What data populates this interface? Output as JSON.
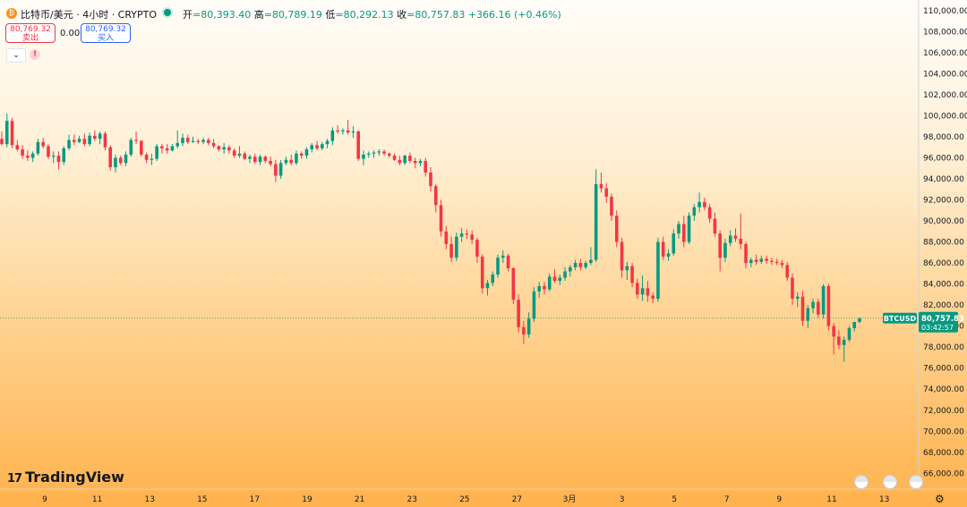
{
  "header": {
    "symbol": "比特币/美元 · 4小时 · CRYPTO",
    "open_label": "开",
    "open": "80,393.40",
    "high_label": "高",
    "high": "80,789.19",
    "low_label": "低",
    "low": "80,292.13",
    "close_label": "收",
    "close": "80,757.83",
    "change": "+366.16 (+0.46%)"
  },
  "trade": {
    "sell_price": "80,769.32",
    "sell_label": "卖出",
    "spread": "0.00",
    "buy_price": "80,769.32",
    "buy_label": "买入"
  },
  "logo_text": "TradingView",
  "icons": [
    "bitcoin-icon",
    "live-status-icon",
    "chevron-down-icon",
    "alert-icon",
    "event-flag-icon",
    "gear-icon"
  ],
  "colors": {
    "up": "#089981",
    "down": "#f23645",
    "sell": "#f23645",
    "buy": "#2962ff"
  },
  "chart_data": {
    "type": "candlestick",
    "symbol": "BTCUSD",
    "interval": "4h",
    "last_price": "80,757.83",
    "countdown": "03:42:57",
    "price_axis_label": "BTCUSD",
    "ylim": [
      64500,
      111000
    ],
    "y_ticks": [
      66000,
      68000,
      70000,
      72000,
      74000,
      76000,
      78000,
      80000,
      82000,
      84000,
      86000,
      88000,
      90000,
      92000,
      94000,
      96000,
      98000,
      100000,
      102000,
      104000,
      106000,
      108000,
      110000
    ],
    "x_ticks": [
      "9",
      "11",
      "13",
      "15",
      "17",
      "19",
      "21",
      "23",
      "25",
      "27",
      "3月",
      "3",
      "5",
      "7",
      "9",
      "11",
      "13"
    ],
    "candles": [
      [
        97800,
        98500,
        97200,
        97300
      ],
      [
        97300,
        100200,
        97000,
        99500
      ],
      [
        99500,
        99800,
        96900,
        97200
      ],
      [
        97200,
        97700,
        96600,
        96800
      ],
      [
        96800,
        97200,
        95900,
        96200
      ],
      [
        96200,
        96700,
        95700,
        96000
      ],
      [
        96000,
        96600,
        95600,
        96400
      ],
      [
        96400,
        97800,
        96200,
        97500
      ],
      [
        97500,
        97900,
        96900,
        97100
      ],
      [
        97100,
        97300,
        95900,
        96100
      ],
      [
        96100,
        96600,
        95500,
        96200
      ],
      [
        96200,
        96600,
        94900,
        95600
      ],
      [
        95600,
        97100,
        95300,
        96900
      ],
      [
        96900,
        98200,
        96700,
        97700
      ],
      [
        97700,
        98200,
        97200,
        97500
      ],
      [
        97500,
        98100,
        97400,
        97800
      ],
      [
        97800,
        98300,
        97100,
        97300
      ],
      [
        97300,
        98400,
        97100,
        98100
      ],
      [
        98100,
        98600,
        97600,
        97800
      ],
      [
        97800,
        98500,
        97300,
        98300
      ],
      [
        98300,
        98500,
        96700,
        97000
      ],
      [
        97000,
        97200,
        94800,
        95100
      ],
      [
        95100,
        96300,
        94600,
        96000
      ],
      [
        96000,
        96200,
        95300,
        95500
      ],
      [
        95500,
        96600,
        95200,
        96300
      ],
      [
        96300,
        97900,
        96100,
        97700
      ],
      [
        97700,
        98500,
        97300,
        97600
      ],
      [
        97600,
        97700,
        96100,
        96300
      ],
      [
        96300,
        96500,
        95500,
        95800
      ],
      [
        95800,
        96400,
        95300,
        95900
      ],
      [
        95900,
        97300,
        95700,
        97100
      ],
      [
        97100,
        97300,
        96400,
        96900
      ],
      [
        96900,
        97300,
        96400,
        96700
      ],
      [
        96700,
        97300,
        96600,
        97100
      ],
      [
        97100,
        98600,
        96900,
        97400
      ],
      [
        97400,
        98300,
        97100,
        97900
      ],
      [
        97900,
        98200,
        97300,
        97500
      ],
      [
        97500,
        98000,
        97400,
        97600
      ],
      [
        97600,
        97800,
        97300,
        97500
      ],
      [
        97500,
        97900,
        97300,
        97700
      ],
      [
        97700,
        97900,
        97200,
        97400
      ],
      [
        97400,
        97800,
        96900,
        97100
      ],
      [
        97100,
        97200,
        96600,
        96800
      ],
      [
        96800,
        97400,
        96400,
        97000
      ],
      [
        97000,
        97200,
        96400,
        96700
      ],
      [
        96700,
        96900,
        96000,
        96200
      ],
      [
        96200,
        97100,
        96000,
        96400
      ],
      [
        96400,
        96600,
        95800,
        95900
      ],
      [
        95900,
        96300,
        95500,
        96100
      ],
      [
        96100,
        96400,
        95400,
        95600
      ],
      [
        95600,
        96300,
        95300,
        96100
      ],
      [
        96100,
        96200,
        95500,
        95700
      ],
      [
        95700,
        96100,
        95200,
        95400
      ],
      [
        95400,
        95800,
        93700,
        94300
      ],
      [
        94300,
        95800,
        94000,
        95500
      ],
      [
        95500,
        96100,
        95300,
        95800
      ],
      [
        95800,
        96300,
        95300,
        95500
      ],
      [
        95500,
        96700,
        95300,
        96400
      ],
      [
        96400,
        96600,
        95900,
        96200
      ],
      [
        96200,
        97000,
        95900,
        96800
      ],
      [
        96800,
        97400,
        96500,
        97200
      ],
      [
        97200,
        97600,
        96700,
        96900
      ],
      [
        96900,
        97500,
        96700,
        97300
      ],
      [
        97300,
        97800,
        96900,
        97600
      ],
      [
        97600,
        98900,
        97200,
        98600
      ],
      [
        98600,
        99100,
        98300,
        98500
      ],
      [
        98500,
        98800,
        98200,
        98600
      ],
      [
        98600,
        99600,
        98200,
        98400
      ],
      [
        98400,
        99000,
        97900,
        98500
      ],
      [
        98500,
        98600,
        95700,
        95900
      ],
      [
        95900,
        96700,
        95300,
        96300
      ],
      [
        96300,
        96600,
        96000,
        96400
      ],
      [
        96400,
        96700,
        96000,
        96500
      ],
      [
        96500,
        96800,
        96200,
        96600
      ],
      [
        96600,
        96800,
        96200,
        96400
      ],
      [
        96400,
        96500,
        96000,
        96200
      ],
      [
        96200,
        96400,
        95700,
        95800
      ],
      [
        95800,
        96200,
        95300,
        95500
      ],
      [
        95500,
        96300,
        95300,
        96200
      ],
      [
        96200,
        96500,
        95500,
        95700
      ],
      [
        95700,
        96000,
        95000,
        95500
      ],
      [
        95500,
        95900,
        95200,
        95700
      ],
      [
        95700,
        96000,
        94200,
        94600
      ],
      [
        94600,
        95100,
        92800,
        93300
      ],
      [
        93300,
        93500,
        90800,
        91500
      ],
      [
        91500,
        92000,
        88500,
        89000
      ],
      [
        89000,
        89500,
        87300,
        87800
      ],
      [
        87800,
        88500,
        86100,
        86500
      ],
      [
        86500,
        88900,
        86200,
        88500
      ],
      [
        88500,
        89300,
        88000,
        88800
      ],
      [
        88800,
        89200,
        88300,
        88700
      ],
      [
        88700,
        89100,
        87800,
        88200
      ],
      [
        88200,
        88400,
        86000,
        86600
      ],
      [
        86600,
        86800,
        83100,
        83600
      ],
      [
        83600,
        84400,
        82900,
        84100
      ],
      [
        84100,
        85200,
        83800,
        84900
      ],
      [
        84900,
        86800,
        84600,
        86500
      ],
      [
        86500,
        87200,
        86000,
        86700
      ],
      [
        86700,
        86900,
        85200,
        85500
      ],
      [
        85500,
        85600,
        82100,
        82500
      ],
      [
        82500,
        83000,
        79400,
        79900
      ],
      [
        79900,
        80500,
        78300,
        79200
      ],
      [
        79200,
        81300,
        78900,
        80700
      ],
      [
        80700,
        83700,
        80400,
        83300
      ],
      [
        83300,
        84200,
        82700,
        83800
      ],
      [
        83800,
        84200,
        83000,
        83500
      ],
      [
        83500,
        85000,
        83300,
        84700
      ],
      [
        84700,
        85400,
        84100,
        84300
      ],
      [
        84300,
        84900,
        83900,
        84600
      ],
      [
        84600,
        85600,
        84300,
        85200
      ],
      [
        85200,
        85800,
        84700,
        85600
      ],
      [
        85600,
        86300,
        85300,
        86000
      ],
      [
        86000,
        86400,
        85300,
        85600
      ],
      [
        85600,
        86200,
        85400,
        86000
      ],
      [
        86000,
        87500,
        85800,
        86300
      ],
      [
        86300,
        94900,
        86100,
        93500
      ],
      [
        93500,
        94600,
        92700,
        93100
      ],
      [
        93100,
        93600,
        91700,
        92300
      ],
      [
        92300,
        92600,
        90000,
        90500
      ],
      [
        90500,
        91000,
        87500,
        88000
      ],
      [
        88000,
        88400,
        84600,
        85300
      ],
      [
        85300,
        86100,
        84400,
        85700
      ],
      [
        85700,
        86000,
        83700,
        84100
      ],
      [
        84100,
        84500,
        82600,
        83000
      ],
      [
        83000,
        84800,
        82400,
        83600
      ],
      [
        83600,
        84300,
        82300,
        82900
      ],
      [
        82900,
        83200,
        82200,
        82600
      ],
      [
        82600,
        88400,
        82300,
        88000
      ],
      [
        88000,
        88500,
        86300,
        86600
      ],
      [
        86600,
        87300,
        86200,
        86900
      ],
      [
        86900,
        89200,
        86700,
        88800
      ],
      [
        88800,
        90000,
        88300,
        89700
      ],
      [
        89700,
        90500,
        87500,
        88000
      ],
      [
        88000,
        90800,
        87800,
        90500
      ],
      [
        90500,
        91600,
        90000,
        91300
      ],
      [
        91300,
        92700,
        90800,
        91800
      ],
      [
        91800,
        92200,
        91000,
        91300
      ],
      [
        91300,
        91600,
        89800,
        90200
      ],
      [
        90200,
        90800,
        88500,
        88800
      ],
      [
        88800,
        89100,
        85200,
        86500
      ],
      [
        86500,
        88300,
        86100,
        87900
      ],
      [
        87900,
        89100,
        87600,
        88600
      ],
      [
        88600,
        89300,
        88000,
        88300
      ],
      [
        88300,
        90700,
        87300,
        87800
      ],
      [
        87800,
        88000,
        85500,
        86000
      ],
      [
        86000,
        86500,
        85600,
        86300
      ],
      [
        86300,
        86800,
        85800,
        86100
      ],
      [
        86100,
        86700,
        85900,
        86400
      ],
      [
        86400,
        86700,
        85900,
        86200
      ],
      [
        86200,
        86500,
        85800,
        86100
      ],
      [
        86100,
        86400,
        85800,
        86000
      ],
      [
        86000,
        86300,
        85500,
        85800
      ],
      [
        85800,
        86100,
        84300,
        84600
      ],
      [
        84600,
        85000,
        82000,
        82600
      ],
      [
        82600,
        83200,
        81800,
        82800
      ],
      [
        82800,
        83400,
        80000,
        80500
      ],
      [
        80500,
        82000,
        79800,
        81700
      ],
      [
        81700,
        82600,
        81200,
        82300
      ],
      [
        82300,
        82600,
        80800,
        81100
      ],
      [
        81100,
        84000,
        80700,
        83800
      ],
      [
        83800,
        84000,
        79600,
        80000
      ],
      [
        80000,
        80300,
        77300,
        79000
      ],
      [
        79000,
        79600,
        77800,
        78200
      ],
      [
        78200,
        79000,
        76600,
        78700
      ],
      [
        78700,
        80000,
        78500,
        79800
      ],
      [
        79800,
        80400,
        79500,
        80400
      ],
      [
        80393.4,
        80789.19,
        80292.13,
        80757.83
      ]
    ]
  }
}
